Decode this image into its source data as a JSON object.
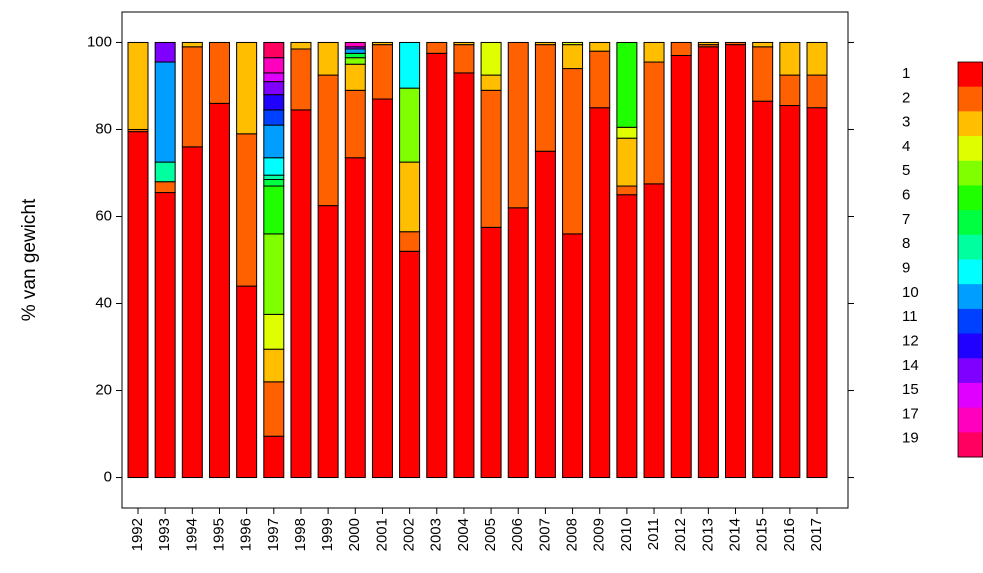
{
  "chart_data": {
    "type": "stacked_bar",
    "y_label": "% van gewicht",
    "categories": [
      "1992",
      "1993",
      "1994",
      "1995",
      "1996",
      "1997",
      "1998",
      "1999",
      "2000",
      "2001",
      "2002",
      "2003",
      "2004",
      "2005",
      "2006",
      "2007",
      "2008",
      "2009",
      "2010",
      "2011",
      "2012",
      "2013",
      "2014",
      "2015",
      "2016",
      "2017"
    ],
    "ylim": [
      -7,
      107
    ],
    "yticks": [
      0,
      20,
      40,
      60,
      80,
      100
    ],
    "series": [
      {
        "name": "1",
        "color": "#ff0000",
        "values": [
          79.5,
          65.5,
          76,
          86,
          44,
          9.5,
          84.5,
          62.5,
          73.5,
          87,
          52,
          97.5,
          93,
          57.5,
          62,
          75,
          56,
          85,
          65,
          67.5,
          97,
          99,
          99.5,
          86.5,
          85.5,
          85
        ]
      },
      {
        "name": "2",
        "color": "#ff6000",
        "values": [
          0.5,
          2.5,
          23,
          14,
          35,
          12.5,
          14,
          30,
          15.5,
          12.5,
          4.5,
          2.5,
          6.5,
          31.5,
          38,
          24.5,
          38,
          13,
          2,
          28,
          3,
          0.5,
          0.5,
          12.5,
          7,
          7.5
        ]
      },
      {
        "name": "3",
        "color": "#ffbf00",
        "values": [
          20,
          0,
          1,
          0,
          21,
          7.5,
          1.5,
          7.5,
          6,
          0.5,
          16,
          0,
          0.5,
          3.5,
          0,
          0.5,
          5.5,
          2,
          11,
          4.5,
          0,
          0.5,
          0,
          1,
          7.5,
          7.5
        ]
      },
      {
        "name": "4",
        "color": "#dfff00",
        "values": [
          0,
          0,
          0,
          0,
          0,
          8,
          0,
          0,
          0,
          0,
          0,
          0,
          0,
          7.5,
          0,
          0,
          0.5,
          0,
          2.5,
          0,
          0,
          0,
          0,
          0,
          0,
          0
        ]
      },
      {
        "name": "5",
        "color": "#80ff00",
        "values": [
          0,
          0,
          0,
          0,
          0,
          18.5,
          0,
          0,
          1.5,
          0,
          17,
          0,
          0,
          0,
          0,
          0,
          0,
          0,
          0,
          0,
          0,
          0,
          0,
          0,
          0,
          0
        ]
      },
      {
        "name": "6",
        "color": "#20ff00",
        "values": [
          0,
          0,
          0,
          0,
          0,
          11,
          0,
          0,
          0,
          0,
          0,
          0,
          0,
          0,
          0,
          0,
          0,
          0,
          19.5,
          0,
          0,
          0,
          0,
          0,
          0,
          0
        ]
      },
      {
        "name": "7",
        "color": "#00ff40",
        "values": [
          0,
          0,
          0,
          0,
          0,
          1.5,
          0,
          0,
          1,
          0,
          0,
          0,
          0,
          0,
          0,
          0,
          0,
          0,
          0,
          0,
          0,
          0,
          0,
          0,
          0,
          0
        ]
      },
      {
        "name": "8",
        "color": "#00ff9f",
        "values": [
          0,
          4.5,
          0,
          0,
          0,
          1,
          0,
          0,
          0,
          0,
          0,
          0,
          0,
          0,
          0,
          0,
          0,
          0,
          0,
          0,
          0,
          0,
          0,
          0,
          0,
          0
        ]
      },
      {
        "name": "9",
        "color": "#00ffff",
        "values": [
          0,
          0,
          0,
          0,
          0,
          4,
          0,
          0,
          0,
          0,
          10.5,
          0,
          0,
          0,
          0,
          0,
          0,
          0,
          0,
          0,
          0,
          0,
          0,
          0,
          0,
          0
        ]
      },
      {
        "name": "10",
        "color": "#009fff",
        "values": [
          0,
          23,
          0,
          0,
          0,
          7.5,
          0,
          0,
          1,
          0,
          0,
          0,
          0,
          0,
          0,
          0,
          0,
          0,
          0,
          0,
          0,
          0,
          0,
          0,
          0,
          0
        ]
      },
      {
        "name": "11",
        "color": "#0040ff",
        "values": [
          0,
          0,
          0,
          0,
          0,
          3.5,
          0,
          0,
          0,
          0,
          0,
          0,
          0,
          0,
          0,
          0,
          0,
          0,
          0,
          0,
          0,
          0,
          0,
          0,
          0,
          0
        ]
      },
      {
        "name": "12",
        "color": "#2000ff",
        "values": [
          0,
          0,
          0,
          0,
          0,
          3.5,
          0,
          0,
          0,
          0,
          0,
          0,
          0,
          0,
          0,
          0,
          0,
          0,
          0,
          0,
          0,
          0,
          0,
          0,
          0,
          0
        ]
      },
      {
        "name": "14",
        "color": "#8000ff",
        "values": [
          0,
          4.5,
          0,
          0,
          0,
          3,
          0,
          0,
          0.5,
          0,
          0,
          0,
          0,
          0,
          0,
          0,
          0,
          0,
          0,
          0,
          0,
          0,
          0,
          0,
          0,
          0
        ]
      },
      {
        "name": "15",
        "color": "#df00ff",
        "values": [
          0,
          0,
          0,
          0,
          0,
          2,
          0,
          0,
          0,
          0,
          0,
          0,
          0,
          0,
          0,
          0,
          0,
          0,
          0,
          0,
          0,
          0,
          0,
          0,
          0,
          0
        ]
      },
      {
        "name": "17",
        "color": "#ff00bf",
        "values": [
          0,
          0,
          0,
          0,
          0,
          3.5,
          0,
          0,
          1,
          0,
          0,
          0,
          0,
          0,
          0,
          0,
          0,
          0,
          0,
          0,
          0,
          0,
          0,
          0,
          0,
          0
        ]
      },
      {
        "name": "19",
        "color": "#ff0060",
        "values": [
          0,
          0,
          0,
          0,
          0,
          3.5,
          0,
          0,
          0,
          0,
          0,
          0,
          0,
          0,
          0,
          0,
          0,
          0,
          0,
          0,
          0,
          0,
          0,
          0,
          0,
          0
        ]
      }
    ]
  }
}
